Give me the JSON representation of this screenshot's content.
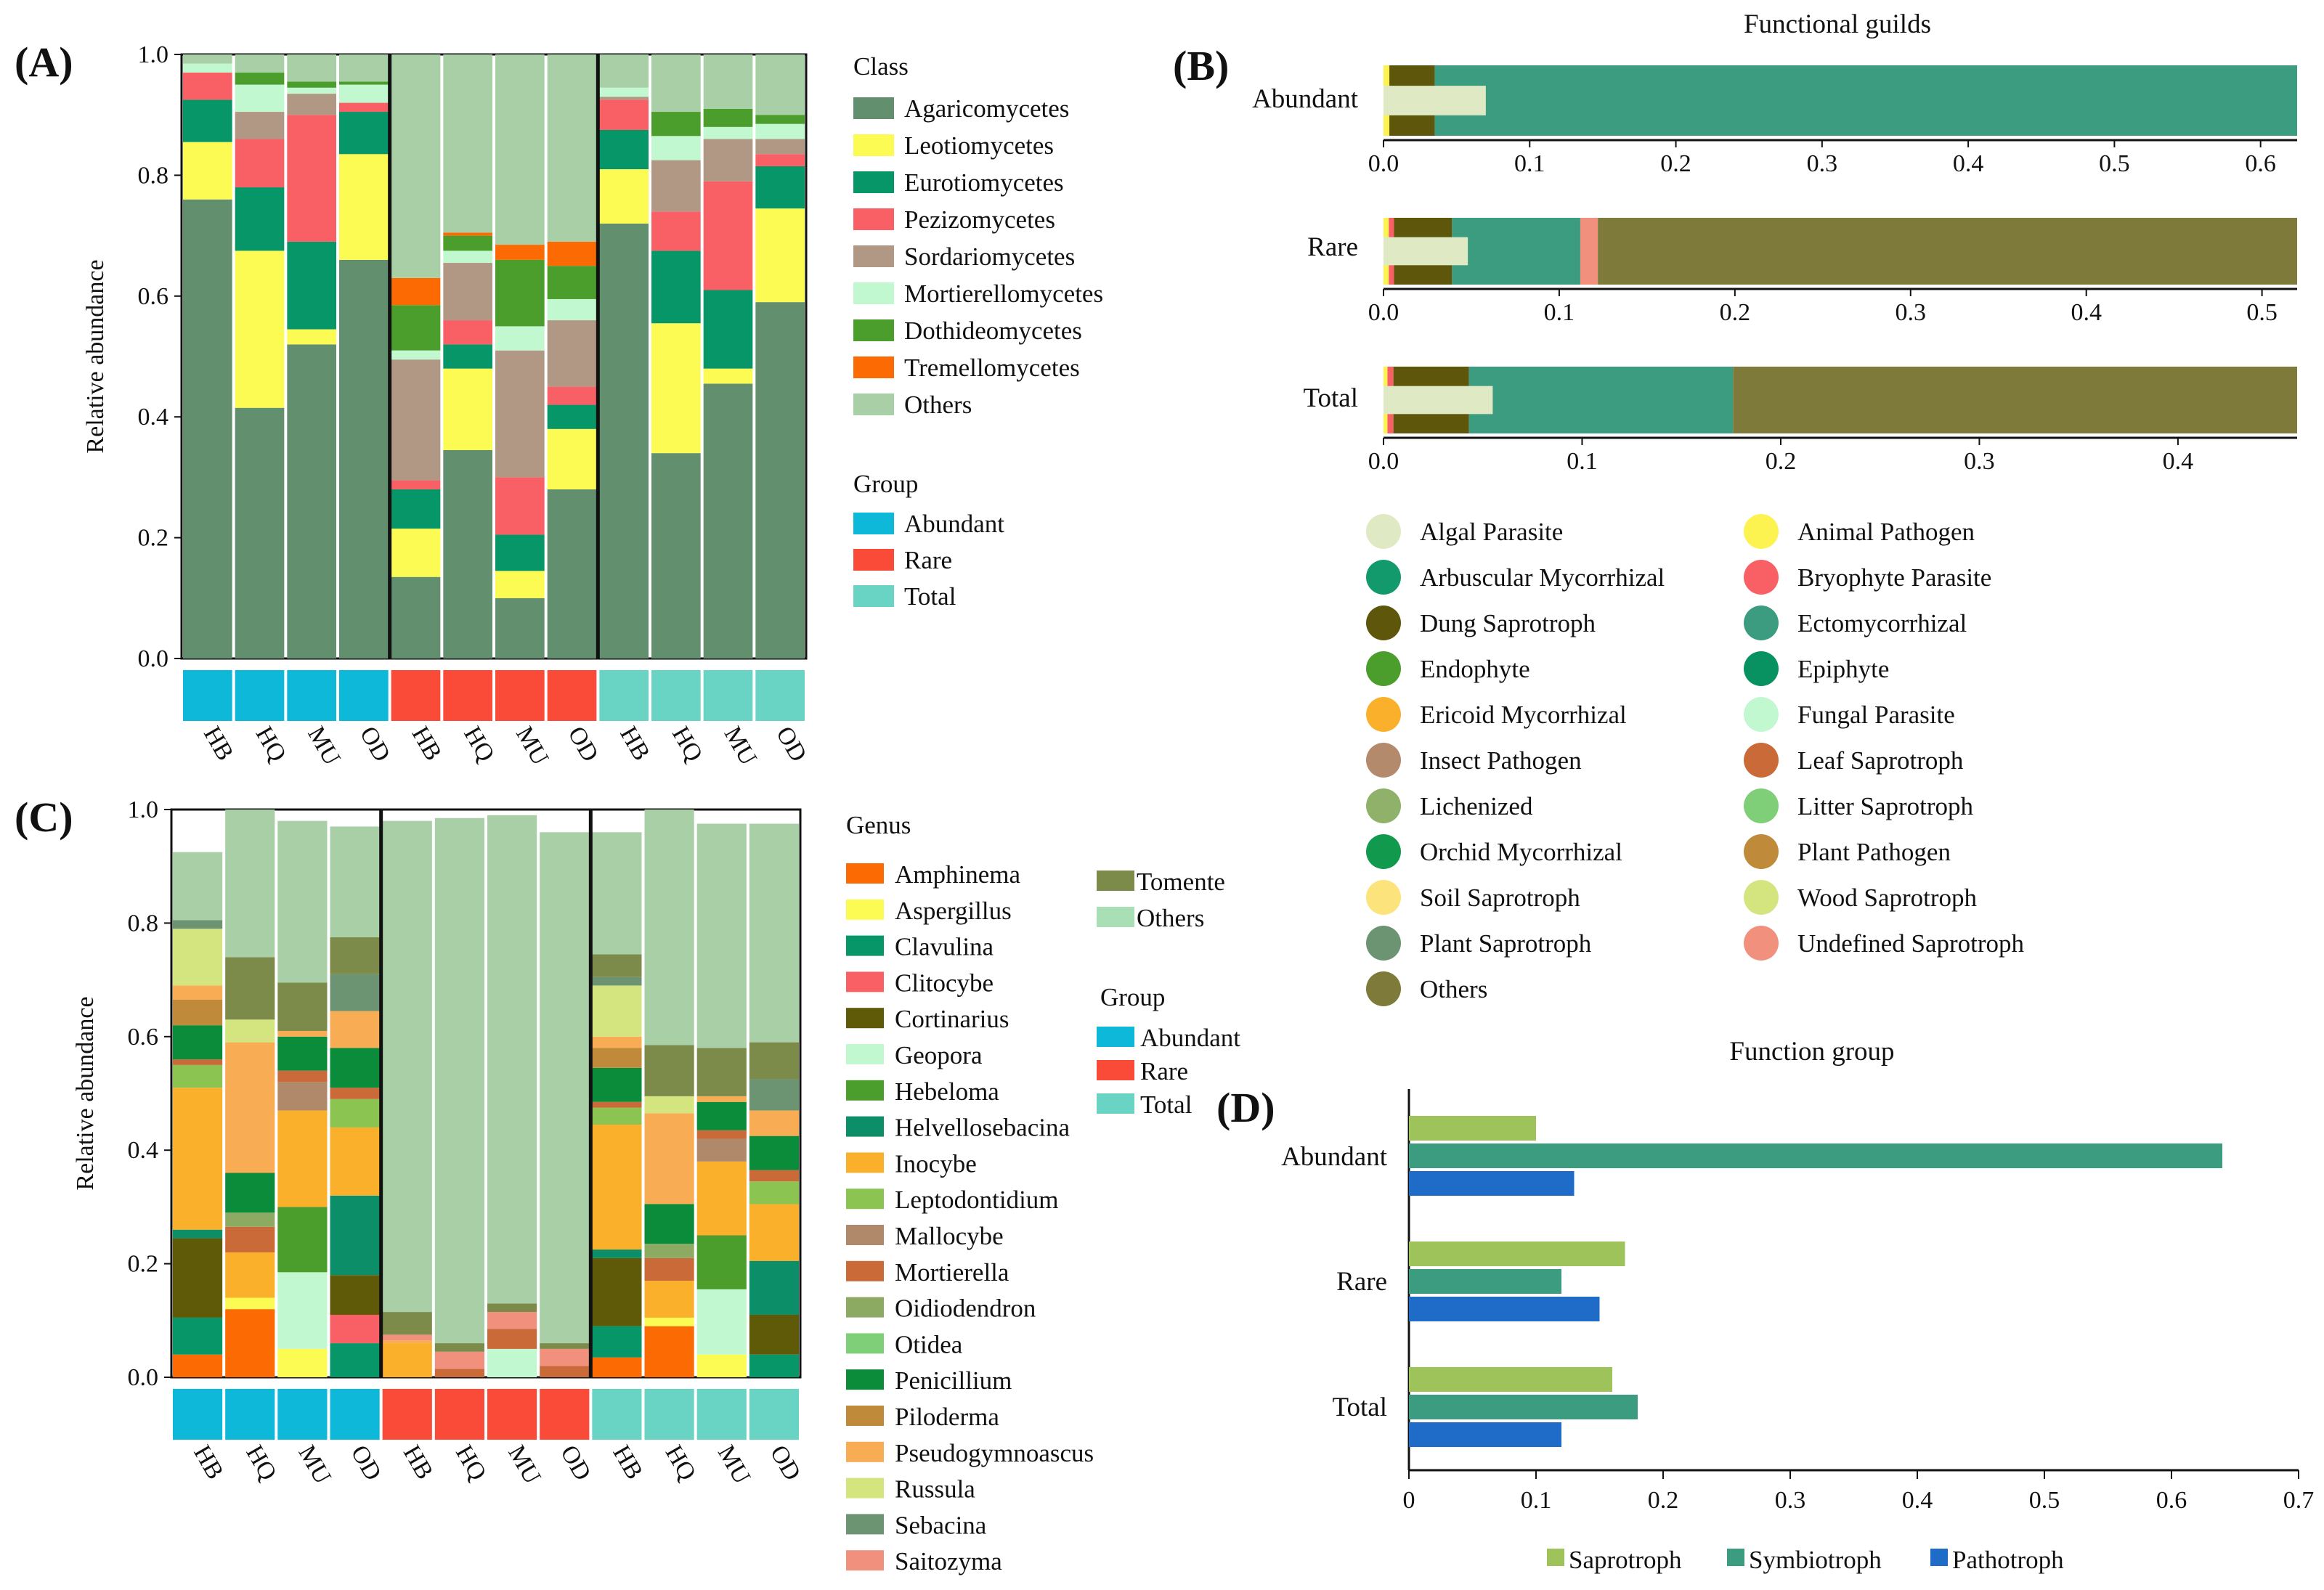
{
  "colors": {
    "Agaricomycetes": "#62906e",
    "Leotiomycetes": "#fcfb53",
    "Eurotiomycetes": "#069668",
    "Pezizomycetes": "#f86066",
    "Sordariomycetes": "#b19885",
    "Mortierellomycetes": "#c2f8d0",
    "Dothideomycetes": "#4b9d2c",
    "Tremellomycetes": "#fb6a03",
    "Others": "#a8cfa5",
    "Abundant": "#0db8d8",
    "Rare": "#fa4a38",
    "Total": "#6ad4c4",
    "Amphinema": "#fb6a03",
    "Aspergillus": "#fcfb53",
    "Clavulina": "#069668",
    "Clitocybe": "#f86066",
    "Cortinarius": "#5f5a08",
    "Geopora": "#c2f8d0",
    "Hebeloma": "#4b9d2c",
    "Helvellosebacina": "#0c8e68",
    "Inocybe": "#fbb02b",
    "Leptodontidium": "#8cc452",
    "Mallocybe": "#b0896a",
    "Mortierella": "#c96a38",
    "Oidiodendron": "#8daa62",
    "Otidea": "#7fce78",
    "Penicillium": "#0a8c3a",
    "Piloderma": "#bf8b3a",
    "Pseudogymnoascus": "#f8ac53",
    "Russula": "#d4e57f",
    "Sebacina": "#6c9473",
    "Saitozyma": "#f2907e",
    "Tomente": "#7d8b4a",
    "Saprotroph": "#9dc35a",
    "Symbiotroph": "#3c9c80",
    "Pathotroph": "#1f6cc8"
  },
  "panel_A": {
    "label": "(A)",
    "legend_title": "Class",
    "group_title": "Group",
    "ylabel": "Relative abundance",
    "yticks": [
      "0.0",
      "0.2",
      "0.4",
      "0.6",
      "0.8",
      "1.0"
    ],
    "legend": [
      "Agaricomycetes",
      "Leotiomycetes",
      "Eurotiomycetes",
      "Pezizomycetes",
      "Sordariomycetes",
      "Mortierellomycetes",
      "Dothideomycetes",
      "Tremellomycetes",
      "Others"
    ],
    "groups": [
      "Abundant",
      "Rare",
      "Total"
    ]
  },
  "panel_B": {
    "label": "(B)",
    "title": "Functional guilds",
    "legend_col1": [
      "Algal Parasite",
      "Arbuscular Mycorrhizal",
      "Dung Saprotroph",
      "Endophyte",
      "Ericoid Mycorrhizal",
      "Insect Pathogen",
      "Lichenized",
      "Orchid Mycorrhizal",
      "Soil Saprotroph",
      "Plant Saprotroph",
      "Others"
    ],
    "legend_col1_colors": [
      "#dfe9c3",
      "#129a6d",
      "#5e560a",
      "#4b9d2c",
      "#fbb02b",
      "#b48a6c",
      "#8fb16a",
      "#119a4d",
      "#fde37b",
      "#6c9473",
      "#7d7a3a"
    ],
    "legend_col2": [
      "Animal Pathogen",
      "Bryophyte Parasite",
      "Ectomycorrhizal",
      "Epiphyte",
      "Fungal Parasite",
      "Leaf Saprotroph",
      "Litter Saprotroph",
      "Plant Pathogen",
      "Wood Saprotroph",
      "Undefined Saprotroph"
    ],
    "legend_col2_colors": [
      "#fdf350",
      "#f86066",
      "#3c9c80",
      "#089262",
      "#c2f8d0",
      "#c96a38",
      "#7fce78",
      "#bf8b3a",
      "#d4e57f",
      "#f2907e"
    ]
  },
  "panel_C": {
    "label": "(C)",
    "legend_title": "Genus",
    "group_title": "Group",
    "ylabel": "Relative abundance",
    "yticks": [
      "0.0",
      "0.2",
      "0.4",
      "0.6",
      "0.8",
      "1.0"
    ],
    "legend_col1": [
      "Amphinema",
      "Aspergillus",
      "Clavulina",
      "Clitocybe",
      "Cortinarius",
      "Geopora",
      "Hebeloma",
      "Helvellosebacina",
      "Inocybe",
      "Leptodontidium",
      "Mallocybe",
      "Mortierella",
      "Oidiodendron",
      "Otidea",
      "Penicillium",
      "Piloderma",
      "Pseudogymnoascus",
      "Russula",
      "Sebacina",
      "Saitozyma"
    ],
    "legend_col2": [
      "Tomente",
      "Others"
    ],
    "groups": [
      "Abundant",
      "Rare",
      "Total"
    ]
  },
  "panel_D": {
    "label": "(D)",
    "title": "Function group",
    "legend": [
      "Saprotroph",
      "Symbiotroph",
      "Pathotroph"
    ]
  },
  "chart_data": [
    {
      "id": "A",
      "type": "bar",
      "stacked": true,
      "title": "",
      "ylabel": "Relative abundance",
      "ylim": [
        0,
        1.0
      ],
      "categories": [
        "HB",
        "HQ",
        "MU",
        "OD",
        "HB",
        "HQ",
        "MU",
        "OD",
        "HB",
        "HQ",
        "MU",
        "OD"
      ],
      "category_groups": [
        "Abundant",
        "Abundant",
        "Abundant",
        "Abundant",
        "Rare",
        "Rare",
        "Rare",
        "Rare",
        "Total",
        "Total",
        "Total",
        "Total"
      ],
      "series": [
        {
          "name": "Agaricomycetes",
          "values": [
            0.76,
            0.415,
            0.52,
            0.66,
            0.135,
            0.345,
            0.1,
            0.28,
            0.72,
            0.34,
            0.455,
            0.59
          ]
        },
        {
          "name": "Leotiomycetes",
          "values": [
            0.095,
            0.26,
            0.025,
            0.175,
            0.08,
            0.135,
            0.045,
            0.1,
            0.09,
            0.215,
            0.025,
            0.155
          ]
        },
        {
          "name": "Eurotiomycetes",
          "values": [
            0.07,
            0.105,
            0.145,
            0.07,
            0.065,
            0.04,
            0.06,
            0.04,
            0.065,
            0.12,
            0.13,
            0.07
          ]
        },
        {
          "name": "Pezizomycetes",
          "values": [
            0.045,
            0.08,
            0.21,
            0.015,
            0.015,
            0.04,
            0.095,
            0.03,
            0.05,
            0.065,
            0.18,
            0.02
          ]
        },
        {
          "name": "Sordariomycetes",
          "values": [
            0.0,
            0.045,
            0.035,
            0.0,
            0.2,
            0.095,
            0.21,
            0.11,
            0.005,
            0.085,
            0.07,
            0.025
          ]
        },
        {
          "name": "Mortierellomycetes",
          "values": [
            0.015,
            0.045,
            0.01,
            0.03,
            0.015,
            0.02,
            0.04,
            0.035,
            0.015,
            0.04,
            0.02,
            0.025
          ]
        },
        {
          "name": "Dothideomycetes",
          "values": [
            0.0,
            0.02,
            0.01,
            0.005,
            0.075,
            0.025,
            0.11,
            0.055,
            0.0,
            0.04,
            0.03,
            0.015
          ]
        },
        {
          "name": "Tremellomycetes",
          "values": [
            0.0,
            0.0,
            0.0,
            0.0,
            0.045,
            0.005,
            0.025,
            0.04,
            0.0,
            0.0,
            0.0,
            0.0
          ]
        },
        {
          "name": "Others",
          "values": [
            0.015,
            0.03,
            0.045,
            0.045,
            0.37,
            0.295,
            0.315,
            0.31,
            0.055,
            0.095,
            0.09,
            0.1
          ]
        }
      ]
    },
    {
      "id": "B1",
      "type": "bar",
      "orientation": "horizontal",
      "title": "Functional guilds",
      "row_label": "Abundant",
      "xlim": [
        0,
        0.625
      ],
      "xticks": [
        "0.0",
        "0.1",
        "0.2",
        "0.3",
        "0.4",
        "0.5",
        "0.6"
      ],
      "segments": [
        {
          "name": "Animal Pathogen",
          "value": 0.004,
          "band": "full"
        },
        {
          "name": "Dung Saprotroph",
          "value": 0.031,
          "band": "full"
        },
        {
          "name": "Ectomycorrhizal",
          "value": 0.59,
          "band": "full"
        },
        {
          "name": "Algal Parasite",
          "value": 0.07,
          "band": "middle"
        }
      ]
    },
    {
      "id": "B2",
      "type": "bar",
      "orientation": "horizontal",
      "row_label": "Rare",
      "xlim": [
        0,
        0.52
      ],
      "xticks": [
        "0.0",
        "0.1",
        "0.2",
        "0.3",
        "0.4",
        "0.5"
      ],
      "segments": [
        {
          "name": "Animal Pathogen",
          "value": 0.003,
          "band": "full"
        },
        {
          "name": "Bryophyte Parasite",
          "value": 0.003,
          "band": "full"
        },
        {
          "name": "Dung Saprotroph",
          "value": 0.033,
          "band": "full"
        },
        {
          "name": "Ectomycorrhizal",
          "value": 0.073,
          "band": "full"
        },
        {
          "name": "Undefined Saprotroph",
          "value": 0.01,
          "band": "full"
        },
        {
          "name": "Others",
          "value": 0.398,
          "band": "full"
        },
        {
          "name": "Algal Parasite",
          "value": 0.048,
          "band": "middle"
        }
      ]
    },
    {
      "id": "B3",
      "type": "bar",
      "orientation": "horizontal",
      "row_label": "Total",
      "xlim": [
        0,
        0.46
      ],
      "xticks": [
        "0.0",
        "0.1",
        "0.2",
        "0.3",
        "0.4"
      ],
      "segments": [
        {
          "name": "Animal Pathogen",
          "value": 0.002,
          "band": "full"
        },
        {
          "name": "Bryophyte Parasite",
          "value": 0.003,
          "band": "full"
        },
        {
          "name": "Dung Saprotroph",
          "value": 0.038,
          "band": "full"
        },
        {
          "name": "Ectomycorrhizal",
          "value": 0.133,
          "band": "full"
        },
        {
          "name": "Others",
          "value": 0.284,
          "band": "full"
        },
        {
          "name": "Algal Parasite",
          "value": 0.055,
          "band": "middle"
        }
      ]
    },
    {
      "id": "C",
      "type": "bar",
      "stacked": true,
      "ylabel": "Relative abundance",
      "ylim": [
        0,
        1.0
      ],
      "categories": [
        "HB",
        "HQ",
        "MU",
        "OD",
        "HB",
        "HQ",
        "MU",
        "OD",
        "HB",
        "HQ",
        "MU",
        "OD"
      ],
      "category_groups": [
        "Abundant",
        "Abundant",
        "Abundant",
        "Abundant",
        "Rare",
        "Rare",
        "Rare",
        "Rare",
        "Total",
        "Total",
        "Total",
        "Total"
      ],
      "series": [
        {
          "name": "Amphinema",
          "values": [
            0.04,
            0.12,
            0.0,
            0.0,
            0.0,
            0.0,
            0.0,
            0.0,
            0.035,
            0.09,
            0.0,
            0.0
          ]
        },
        {
          "name": "Aspergillus",
          "values": [
            0.0,
            0.02,
            0.05,
            0.0,
            0.0,
            0.0,
            0.0,
            0.0,
            0.0,
            0.015,
            0.04,
            0.0
          ]
        },
        {
          "name": "Clavulina",
          "values": [
            0.065,
            0.0,
            0.0,
            0.06,
            0.0,
            0.0,
            0.0,
            0.0,
            0.055,
            0.0,
            0.0,
            0.04
          ]
        },
        {
          "name": "Clitocybe",
          "values": [
            0.0,
            0.0,
            0.0,
            0.05,
            0.0,
            0.0,
            0.0,
            0.0,
            0.0,
            0.0,
            0.0,
            0.0
          ]
        },
        {
          "name": "Cortinarius",
          "values": [
            0.14,
            0.0,
            0.0,
            0.07,
            0.0,
            0.0,
            0.0,
            0.0,
            0.12,
            0.0,
            0.0,
            0.07
          ]
        },
        {
          "name": "Geopora",
          "values": [
            0.0,
            0.0,
            0.135,
            0.0,
            0.0,
            0.0,
            0.05,
            0.0,
            0.0,
            0.0,
            0.115,
            0.0
          ]
        },
        {
          "name": "Hebeloma",
          "values": [
            0.0,
            0.0,
            0.115,
            0.0,
            0.0,
            0.0,
            0.0,
            0.0,
            0.0,
            0.0,
            0.095,
            0.0
          ]
        },
        {
          "name": "Helvellosebacina",
          "values": [
            0.015,
            0.0,
            0.0,
            0.14,
            0.0,
            0.0,
            0.0,
            0.0,
            0.015,
            0.0,
            0.0,
            0.095
          ]
        },
        {
          "name": "Inocybe",
          "values": [
            0.25,
            0.08,
            0.17,
            0.12,
            0.06,
            0.0,
            0.0,
            0.0,
            0.22,
            0.065,
            0.13,
            0.1
          ]
        },
        {
          "name": "Leptodontidium",
          "values": [
            0.04,
            0.0,
            0.0,
            0.05,
            0.0,
            0.0,
            0.0,
            0.0,
            0.03,
            0.0,
            0.0,
            0.04
          ]
        },
        {
          "name": "Mallocybe",
          "values": [
            0.0,
            0.0,
            0.05,
            0.0,
            0.0,
            0.0,
            0.0,
            0.0,
            0.0,
            0.0,
            0.04,
            0.0
          ]
        },
        {
          "name": "Mortierella",
          "values": [
            0.01,
            0.045,
            0.02,
            0.02,
            0.0,
            0.015,
            0.035,
            0.02,
            0.01,
            0.04,
            0.015,
            0.02
          ]
        },
        {
          "name": "Oidiodendron",
          "values": [
            0.0,
            0.025,
            0.0,
            0.0,
            0.0,
            0.0,
            0.0,
            0.0,
            0.0,
            0.025,
            0.0,
            0.0
          ]
        },
        {
          "name": "Otidea",
          "values": [
            0.0,
            0.0,
            0.0,
            0.0,
            0.0,
            0.0,
            0.0,
            0.0,
            0.0,
            0.0,
            0.0,
            0.0
          ]
        },
        {
          "name": "Penicillium",
          "values": [
            0.06,
            0.07,
            0.06,
            0.07,
            0.0,
            0.0,
            0.0,
            0.0,
            0.06,
            0.07,
            0.05,
            0.06
          ]
        },
        {
          "name": "Piloderma",
          "values": [
            0.045,
            0.0,
            0.0,
            0.0,
            0.0,
            0.0,
            0.0,
            0.0,
            0.035,
            0.0,
            0.0,
            0.0
          ]
        },
        {
          "name": "Pseudogymnoascus",
          "values": [
            0.025,
            0.23,
            0.01,
            0.065,
            0.005,
            0.0,
            0.0,
            0.0,
            0.02,
            0.16,
            0.01,
            0.045
          ]
        },
        {
          "name": "Russula",
          "values": [
            0.1,
            0.04,
            0.0,
            0.0,
            0.0,
            0.0,
            0.0,
            0.0,
            0.09,
            0.03,
            0.0,
            0.0
          ]
        },
        {
          "name": "Sebacina",
          "values": [
            0.015,
            0.0,
            0.0,
            0.065,
            0.0,
            0.0,
            0.0,
            0.0,
            0.015,
            0.0,
            0.0,
            0.055
          ]
        },
        {
          "name": "Saitozyma",
          "values": [
            0.0,
            0.0,
            0.0,
            0.0,
            0.01,
            0.03,
            0.03,
            0.03,
            0.0,
            0.0,
            0.0,
            0.0
          ]
        },
        {
          "name": "Tomente",
          "values": [
            0.0,
            0.11,
            0.085,
            0.065,
            0.04,
            0.015,
            0.015,
            0.01,
            0.04,
            0.09,
            0.085,
            0.065
          ]
        },
        {
          "name": "Others",
          "values": [
            0.12,
            0.26,
            0.285,
            0.195,
            0.865,
            0.925,
            0.86,
            0.9,
            0.215,
            0.415,
            0.395,
            0.385
          ]
        }
      ]
    },
    {
      "id": "D",
      "type": "bar",
      "orientation": "horizontal",
      "title": "Function group",
      "categories": [
        "Abundant",
        "Rare",
        "Total"
      ],
      "xlim": [
        0,
        0.7
      ],
      "xticks": [
        "0",
        "0.1",
        "0.2",
        "0.3",
        "0.4",
        "0.5",
        "0.6",
        "0.7"
      ],
      "series": [
        {
          "name": "Saprotroph",
          "values": [
            0.1,
            0.17,
            0.16
          ]
        },
        {
          "name": "Symbiotroph",
          "values": [
            0.64,
            0.12,
            0.18
          ]
        },
        {
          "name": "Pathotroph",
          "values": [
            0.13,
            0.15,
            0.12
          ]
        }
      ]
    }
  ]
}
